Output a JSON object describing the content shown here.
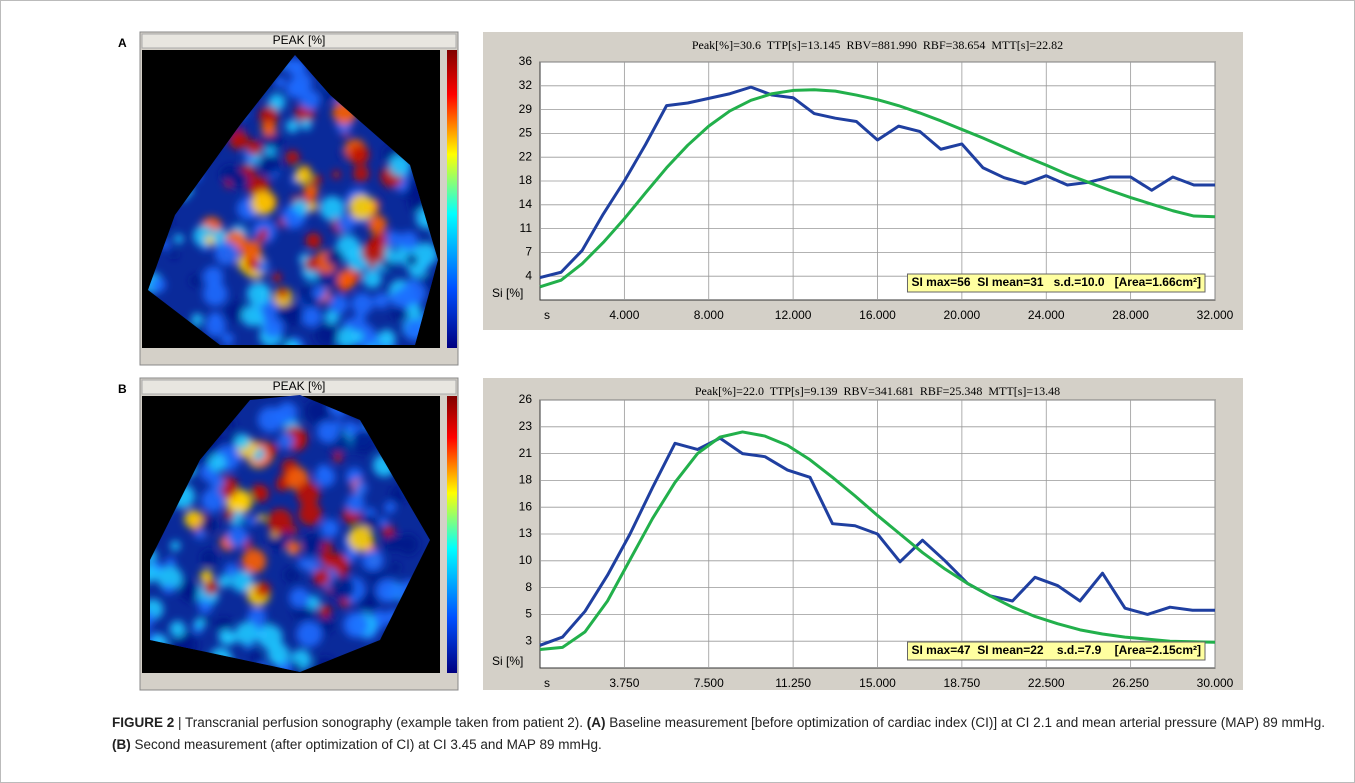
{
  "figure": {
    "panels": [
      {
        "label": "A",
        "image_title": "PEAK [%]"
      },
      {
        "label": "B",
        "image_title": "PEAK [%]"
      }
    ],
    "caption": {
      "parts": [
        {
          "text": "FIGURE 2",
          "bold": true
        },
        {
          "text": " | Transcranial perfusion sonography (example taken from patient 2). ",
          "bold": false
        },
        {
          "text": "(A)",
          "bold": true
        },
        {
          "text": " Baseline measurement [before optimization of cardiac index (CI)] at CI 2.1 and mean arterial pressure (MAP) 89 mmHg. ",
          "bold": false
        },
        {
          "text": "(B)",
          "bold": true
        },
        {
          "text": " Second measurement (after optimization of CI) at CI 3.45 and MAP 89 mmHg.",
          "bold": false
        }
      ]
    }
  },
  "chart_data": [
    {
      "type": "line",
      "title": "Peak[%]=30.6  TTP[s]=13.145  RBV=881.990  RBF=38.654  MTT[s]=22.82",
      "xlabel": "s",
      "ylabel": "Si [%]",
      "annotation": "SI max=56  SI mean=31   s.d.=10.0   [Area=1.66cm²]",
      "x": [
        0,
        1,
        2,
        3,
        4,
        5,
        6,
        7,
        8,
        9,
        10,
        11,
        12,
        13,
        14,
        15,
        16,
        17,
        18,
        19,
        20,
        21,
        22,
        23,
        24,
        25,
        26,
        27,
        28,
        29,
        30,
        31,
        32
      ],
      "series": [
        {
          "color": "#1f3fa0",
          "values": [
            3.4,
            4.2,
            7.5,
            13,
            18,
            23.5,
            29.4,
            29.8,
            30.5,
            31.2,
            32.2,
            31,
            30.6,
            28.2,
            27.5,
            27,
            24.2,
            26.3,
            25.5,
            22.8,
            23.6,
            20,
            18.5,
            17.6,
            18.8,
            17.4,
            17.8,
            18.6,
            18.6,
            16.6,
            18.6,
            17.4,
            17.4
          ]
        },
        {
          "color": "#22b04b",
          "values": [
            2,
            3,
            5.5,
            8.7,
            12.3,
            16.2,
            20,
            23.4,
            26.3,
            28.6,
            30.2,
            31.2,
            31.7,
            31.8,
            31.6,
            31,
            30.3,
            29.4,
            28.3,
            27.1,
            25.8,
            24.5,
            23.1,
            21.7,
            20.4,
            19,
            17.8,
            16.6,
            15.5,
            14.5,
            13.5,
            12.7,
            12.6
          ]
        }
      ],
      "xlim": [
        0,
        32
      ],
      "ylim": [
        0,
        36
      ],
      "xticks": [
        {
          "value": 4,
          "label": "4.000"
        },
        {
          "value": 8,
          "label": "8.000"
        },
        {
          "value": 12,
          "label": "12.000"
        },
        {
          "value": 16,
          "label": "16.000"
        },
        {
          "value": 20,
          "label": "20.000"
        },
        {
          "value": 24,
          "label": "24.000"
        },
        {
          "value": 28,
          "label": "28.000"
        },
        {
          "value": 32,
          "label": "32.000"
        }
      ],
      "yticks": [
        {
          "value": 3.6,
          "label": "4"
        },
        {
          "value": 7.2,
          "label": "7"
        },
        {
          "value": 10.8,
          "label": "11"
        },
        {
          "value": 14.4,
          "label": "14"
        },
        18,
        {
          "value": 21.6,
          "label": "22"
        },
        {
          "value": 25.2,
          "label": "25"
        },
        {
          "value": 28.8,
          "label": "29"
        },
        {
          "value": 32.4,
          "label": "32"
        },
        36
      ],
      "grid": true
    },
    {
      "type": "line",
      "title": "Peak[%]=22.0  TTP[s]=9.139  RBV=341.681  RBF=25.348  MTT[s]=13.48",
      "xlabel": "s",
      "ylabel": "Si [%]",
      "annotation": "SI max=47  SI mean=22    s.d.=7.9    [Area=2.15cm²]",
      "x": [
        0,
        1,
        2,
        3,
        4,
        5,
        6,
        7,
        8,
        9,
        10,
        11,
        12,
        13,
        14,
        15,
        16,
        17,
        18,
        19,
        20,
        21,
        22,
        23,
        24,
        25,
        26,
        27,
        28,
        29,
        30
      ],
      "series": [
        {
          "color": "#1f3fa0",
          "values": [
            2.2,
            3,
            5.5,
            9,
            13,
            17.5,
            21.8,
            21.2,
            22.3,
            20.8,
            20.5,
            19.2,
            18.5,
            14,
            13.8,
            13,
            10.3,
            12.4,
            10.4,
            8.2,
            7,
            6.5,
            8.8,
            8,
            6.5,
            9.2,
            5.8,
            5.2,
            5.9,
            5.6,
            5.6
          ]
        },
        {
          "color": "#22b04b",
          "values": [
            1.8,
            2,
            3.5,
            6.5,
            10.5,
            14.5,
            18,
            20.8,
            22.4,
            22.9,
            22.5,
            21.6,
            20.2,
            18.5,
            16.7,
            14.8,
            13,
            11.2,
            9.6,
            8.2,
            7,
            5.9,
            5,
            4.3,
            3.7,
            3.3,
            3,
            2.8,
            2.6,
            2.55,
            2.5
          ]
        }
      ],
      "xlim": [
        0,
        30
      ],
      "ylim": [
        0,
        26
      ],
      "xticks": [
        {
          "value": 3.75,
          "label": "3.750"
        },
        {
          "value": 7.5,
          "label": "7.500"
        },
        {
          "value": 11.25,
          "label": "11.250"
        },
        {
          "value": 15,
          "label": "15.000"
        },
        {
          "value": 18.75,
          "label": "18.750"
        },
        {
          "value": 22.5,
          "label": "22.500"
        },
        {
          "value": 26.25,
          "label": "26.250"
        },
        {
          "value": 30,
          "label": "30.000"
        }
      ],
      "yticks": [
        {
          "value": 2.6,
          "label": "3"
        },
        {
          "value": 5.2,
          "label": "5"
        },
        {
          "value": 7.8,
          "label": "8"
        },
        {
          "value": 10.4,
          "label": "10"
        },
        13,
        {
          "value": 15.6,
          "label": "16"
        },
        {
          "value": 18.2,
          "label": "18"
        },
        {
          "value": 20.8,
          "label": "21"
        },
        {
          "value": 23.4,
          "label": "23"
        },
        26
      ],
      "grid": true
    }
  ]
}
